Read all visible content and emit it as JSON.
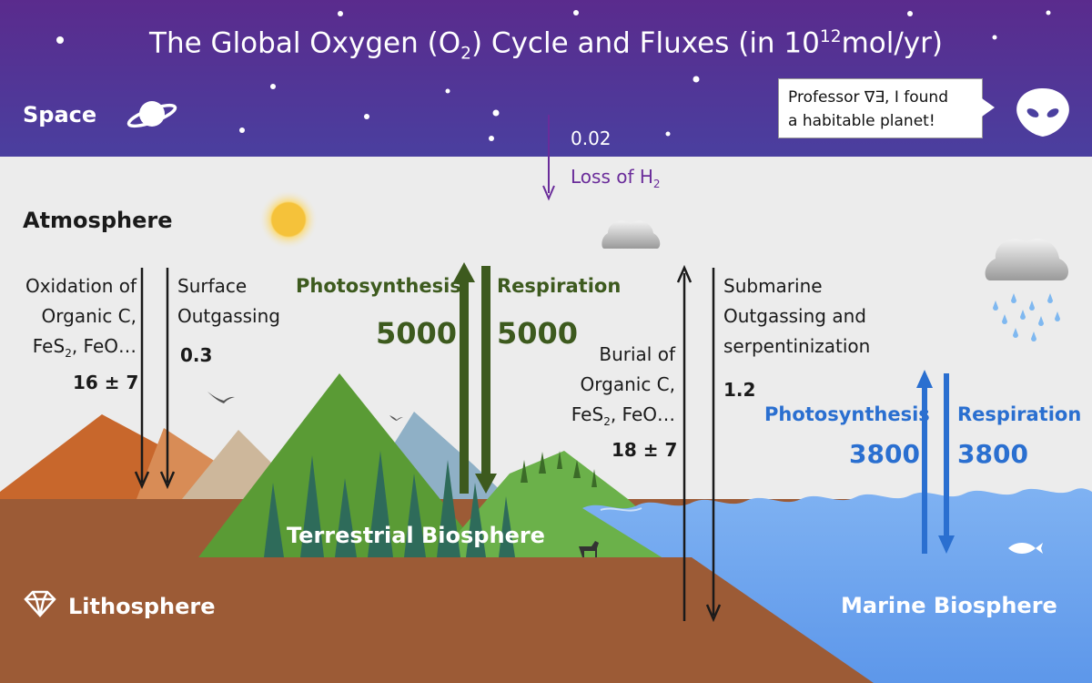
{
  "title": {
    "prefix": "The Global Oxygen (O",
    "o2_sub": "2",
    "middle": ") Cycle and Fluxes (in 10",
    "exp_sup": "12",
    "suffix": "mol/yr)"
  },
  "zones": {
    "space": "Space",
    "atmosphere": "Atmosphere",
    "lithosphere": "Lithosphere",
    "terrestrial": "Terrestrial Biosphere",
    "marine": "Marine Biosphere"
  },
  "speech": {
    "line1": "Professor ∇∃, I found",
    "line2": "a habitable planet!"
  },
  "h2_loss": {
    "value": "0.02",
    "label_pre": "Loss of H",
    "label_sub": "2"
  },
  "oxidation": {
    "line1": "Oxidation of",
    "line2": "Organic C,",
    "line3_pre": "FeS",
    "line3_sub": "2",
    "line3_post": ", FeO…",
    "value": "16 ± 7"
  },
  "surface_outgassing": {
    "line1": "Surface",
    "line2": "Outgassing",
    "value": "0.3"
  },
  "terrestrial_photo": {
    "label": "Photosynthesis",
    "value": "5000"
  },
  "terrestrial_resp": {
    "label": "Respiration",
    "value": "5000"
  },
  "burial": {
    "line1": "Burial of",
    "line2": "Organic C,",
    "line3_pre": "FeS",
    "line3_sub": "2",
    "line3_post": ", FeO…",
    "value": "18 ± 7"
  },
  "submarine": {
    "line1": "Submarine",
    "line2": "Outgassing and",
    "line3": "serpentinization",
    "value": "1.2"
  },
  "marine_photo": {
    "label": "Photosynthesis",
    "value": "3800"
  },
  "marine_resp": {
    "label": "Respiration",
    "value": "3800"
  },
  "colors": {
    "space_top": "#5b2d8f",
    "space_bottom": "#4e3a9c",
    "sky": "#ececec",
    "terrestrial_green": "#3d5a1e",
    "marine_blue": "#2a6fd0",
    "h2_arrow": "#6a2c9a",
    "litho_brown": "#9a5a36",
    "ocean": "#6aa6f0"
  }
}
